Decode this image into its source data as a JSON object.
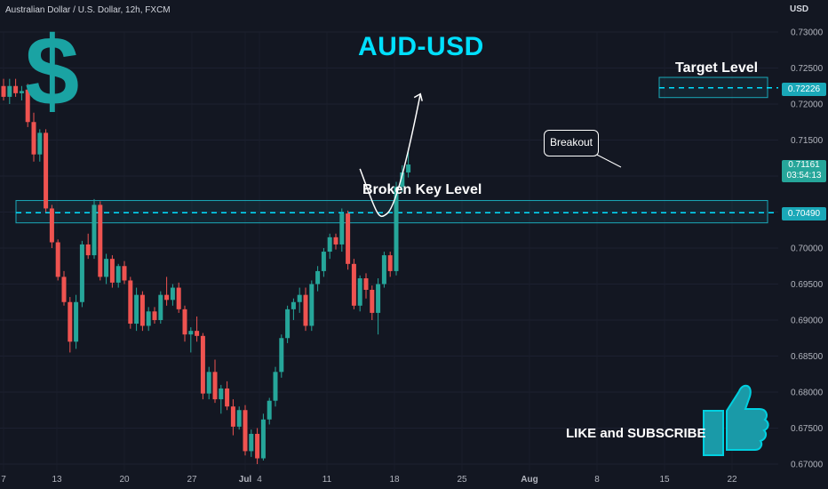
{
  "header": {
    "symbol": "Australian Dollar / U.S. Dollar, 12h, FXCM",
    "currency": "USD"
  },
  "title": "AUD-USD",
  "decor": {
    "dollar": "$",
    "thumbs_up_icon": "thumbs-up-icon"
  },
  "annotations": {
    "key_level_label": "Broken Key Level",
    "target_label": "Target Level",
    "callout": "Breakout",
    "cta": "LIKE and SUBSCRIBE"
  },
  "price_badges": {
    "target": "0.72226",
    "key": "0.70490",
    "current_price": "0.71161",
    "countdown": "03:54:13"
  },
  "colors": {
    "background": "#131722",
    "up": "#26a69a",
    "down": "#ef5350",
    "accent": "#00e0ff",
    "zone": "#1aa8b8"
  },
  "chart_data": {
    "type": "candlestick",
    "title": "AUD-USD",
    "ylim": [
      0.67,
      0.73
    ],
    "y_ticks": [
      "0.73000",
      "0.72500",
      "0.72000",
      "0.71500",
      "0.71000",
      "0.70500",
      "0.70000",
      "0.69500",
      "0.69000",
      "0.68500",
      "0.68000",
      "0.67500",
      "0.67000"
    ],
    "x_ticks": [
      "7",
      "13",
      "20",
      "27",
      "Jul",
      "4",
      "11",
      "18",
      "25",
      "Aug",
      "8",
      "15",
      "22"
    ],
    "key_level": {
      "value": 0.7049,
      "low": 0.7035,
      "high": 0.7066
    },
    "target_level": {
      "value": 0.72226,
      "low": 0.7209,
      "high": 0.7237
    },
    "projected_path": [
      {
        "t": 59.0,
        "v": 0.711
      },
      {
        "t": 62.0,
        "v": 0.7055
      },
      {
        "t": 63.5,
        "v": 0.7048
      },
      {
        "t": 67.0,
        "v": 0.713
      },
      {
        "t": 69.0,
        "v": 0.7214
      }
    ],
    "candles": [
      [
        0.7225,
        0.7235,
        0.7205,
        0.721
      ],
      [
        0.721,
        0.7235,
        0.72,
        0.7225
      ],
      [
        0.7225,
        0.7235,
        0.721,
        0.7215
      ],
      [
        0.7215,
        0.7225,
        0.7205,
        0.7218
      ],
      [
        0.722,
        0.7228,
        0.7168,
        0.7175
      ],
      [
        0.7175,
        0.7188,
        0.712,
        0.713
      ],
      [
        0.713,
        0.7165,
        0.712,
        0.716
      ],
      [
        0.716,
        0.7165,
        0.705,
        0.7055
      ],
      [
        0.7055,
        0.706,
        0.7,
        0.7008
      ],
      [
        0.7008,
        0.7012,
        0.6955,
        0.696
      ],
      [
        0.696,
        0.6968,
        0.692,
        0.6925
      ],
      [
        0.6925,
        0.6932,
        0.6855,
        0.687
      ],
      [
        0.687,
        0.6935,
        0.686,
        0.6925
      ],
      [
        0.6925,
        0.701,
        0.6918,
        0.7005
      ],
      [
        0.7005,
        0.702,
        0.6985,
        0.699
      ],
      [
        0.699,
        0.7068,
        0.6985,
        0.706
      ],
      [
        0.706,
        0.7065,
        0.6955,
        0.696
      ],
      [
        0.696,
        0.6992,
        0.695,
        0.6985
      ],
      [
        0.6985,
        0.699,
        0.6945,
        0.6952
      ],
      [
        0.6952,
        0.6978,
        0.6945,
        0.6975
      ],
      [
        0.6975,
        0.6982,
        0.695,
        0.6955
      ],
      [
        0.6955,
        0.696,
        0.6888,
        0.6895
      ],
      [
        0.6895,
        0.6945,
        0.6885,
        0.6935
      ],
      [
        0.6935,
        0.694,
        0.6885,
        0.6892
      ],
      [
        0.6892,
        0.6918,
        0.6885,
        0.6912
      ],
      [
        0.6912,
        0.6918,
        0.6895,
        0.69
      ],
      [
        0.69,
        0.694,
        0.6895,
        0.6935
      ],
      [
        0.6935,
        0.696,
        0.692,
        0.6928
      ],
      [
        0.6928,
        0.695,
        0.692,
        0.6945
      ],
      [
        0.6945,
        0.6952,
        0.691,
        0.6915
      ],
      [
        0.6915,
        0.692,
        0.687,
        0.688
      ],
      [
        0.688,
        0.689,
        0.6855,
        0.6885
      ],
      [
        0.6885,
        0.6905,
        0.687,
        0.6878
      ],
      [
        0.6878,
        0.6882,
        0.679,
        0.6798
      ],
      [
        0.6798,
        0.6835,
        0.679,
        0.6828
      ],
      [
        0.6828,
        0.6845,
        0.6785,
        0.679
      ],
      [
        0.679,
        0.681,
        0.677,
        0.6805
      ],
      [
        0.6805,
        0.6815,
        0.6775,
        0.678
      ],
      [
        0.678,
        0.679,
        0.674,
        0.6752
      ],
      [
        0.6752,
        0.678,
        0.6748,
        0.6775
      ],
      [
        0.6775,
        0.6782,
        0.6712,
        0.6718
      ],
      [
        0.6718,
        0.6748,
        0.671,
        0.6742
      ],
      [
        0.6742,
        0.675,
        0.67,
        0.6708
      ],
      [
        0.6708,
        0.677,
        0.6705,
        0.6762
      ],
      [
        0.6762,
        0.6792,
        0.6755,
        0.6788
      ],
      [
        0.6788,
        0.6835,
        0.678,
        0.6828
      ],
      [
        0.6828,
        0.688,
        0.682,
        0.6875
      ],
      [
        0.6875,
        0.692,
        0.6868,
        0.6915
      ],
      [
        0.6915,
        0.693,
        0.69,
        0.6925
      ],
      [
        0.6925,
        0.6945,
        0.691,
        0.6935
      ],
      [
        0.6935,
        0.6945,
        0.6885,
        0.6892
      ],
      [
        0.6892,
        0.6955,
        0.6885,
        0.695
      ],
      [
        0.695,
        0.6975,
        0.694,
        0.6968
      ],
      [
        0.6968,
        0.7,
        0.696,
        0.6995
      ],
      [
        0.6995,
        0.702,
        0.6985,
        0.7015
      ],
      [
        0.7015,
        0.702,
        0.6998,
        0.7005
      ],
      [
        0.7005,
        0.7055,
        0.6995,
        0.7048
      ],
      [
        0.7048,
        0.7052,
        0.697,
        0.6978
      ],
      [
        0.6978,
        0.6985,
        0.6915,
        0.692
      ],
      [
        0.692,
        0.6962,
        0.6912,
        0.6958
      ],
      [
        0.6958,
        0.6965,
        0.693,
        0.6942
      ],
      [
        0.6942,
        0.6948,
        0.69,
        0.691
      ],
      [
        0.691,
        0.6958,
        0.688,
        0.695
      ],
      [
        0.695,
        0.6995,
        0.6945,
        0.699
      ],
      [
        0.699,
        0.6995,
        0.696,
        0.6968
      ],
      [
        0.6968,
        0.7092,
        0.6962,
        0.7085
      ],
      [
        0.7085,
        0.7115,
        0.7078,
        0.7105
      ],
      [
        0.7105,
        0.7138,
        0.7098,
        0.7116
      ]
    ]
  }
}
